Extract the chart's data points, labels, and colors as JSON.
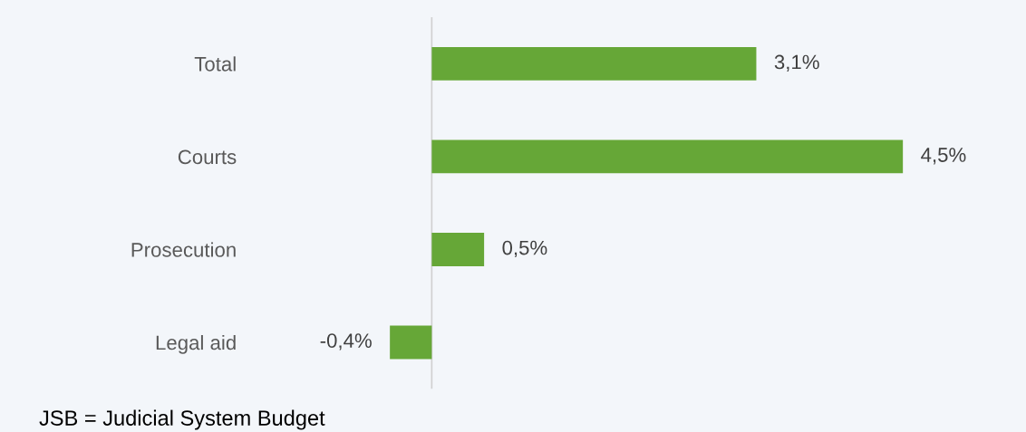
{
  "chart_data": {
    "type": "bar",
    "orientation": "horizontal",
    "categories": [
      "Total",
      "Courts",
      "Prosecution",
      "Legal aid"
    ],
    "values": [
      3.1,
      4.5,
      0.5,
      -0.4
    ],
    "value_labels": [
      "3,1%",
      "4,5%",
      "0,5%",
      "-0,4%"
    ],
    "color": "#66a737",
    "grid": false,
    "legend": false,
    "annotations": [
      "JSB = Judicial System Budget"
    ]
  }
}
